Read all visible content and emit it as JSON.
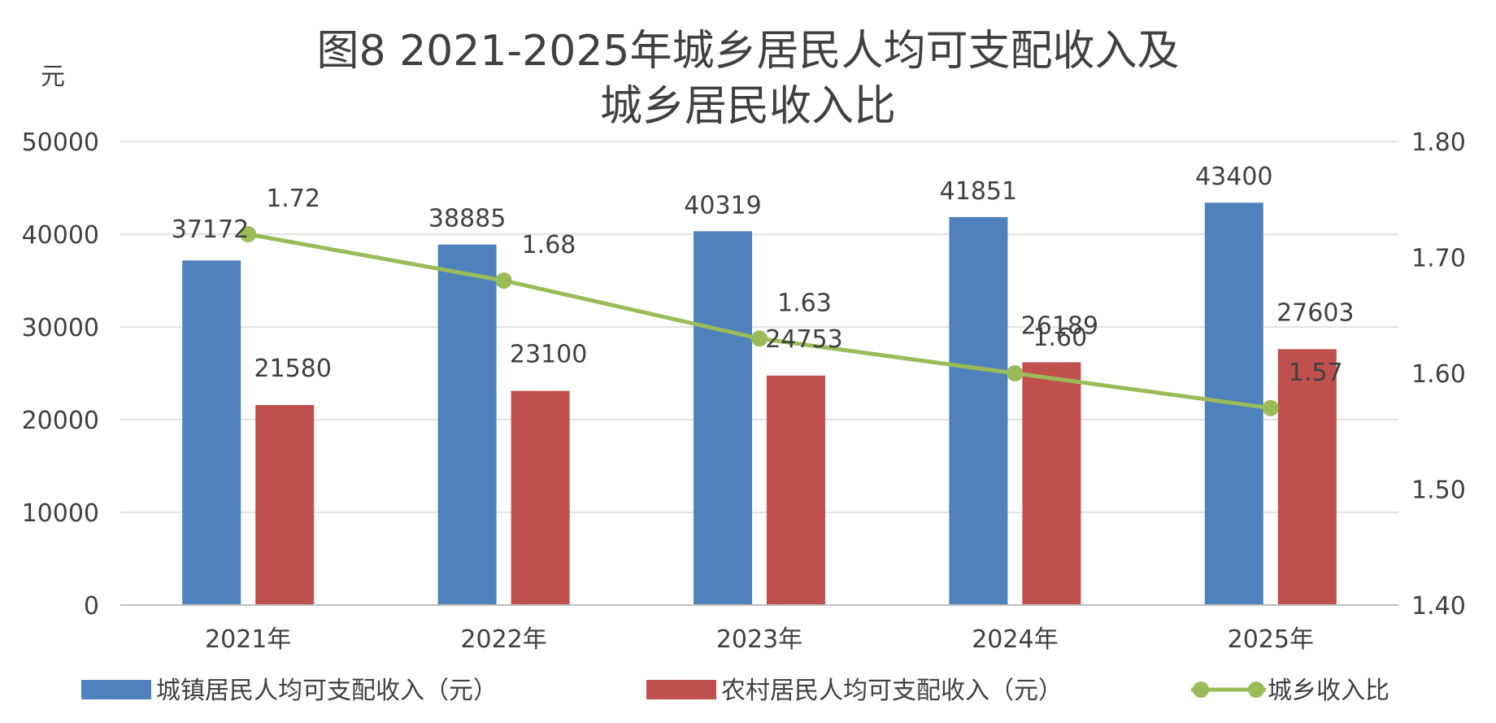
{
  "chart_data": {
    "type": "bar",
    "title_lines": [
      "图8  2021-2025年城乡居民人均可支配收入及",
      "城乡居民收入比"
    ],
    "y_unit": "元",
    "categories": [
      "2021年",
      "2022年",
      "2023年",
      "2024年",
      "2025年"
    ],
    "ylim": [
      0,
      50000
    ],
    "yticks": [
      "0",
      "10000",
      "20000",
      "30000",
      "40000",
      "50000"
    ],
    "y2lim": [
      1.4,
      1.8
    ],
    "y2ticks": [
      "1.40",
      "1.50",
      "1.60",
      "1.70",
      "1.80"
    ],
    "grid": true,
    "legend_position": "bottom",
    "series": [
      {
        "name": "城镇居民人均可支配收入（元）",
        "type": "bar",
        "axis": "left",
        "color": "#4f81bd",
        "values": [
          37172,
          38885,
          40319,
          41851,
          43400
        ],
        "labels": [
          "37172",
          "38885",
          "40319",
          "41851",
          "43400"
        ]
      },
      {
        "name": "农村居民人均可支配收入（元）",
        "type": "bar",
        "axis": "left",
        "color": "#c0504d",
        "values": [
          21580,
          23100,
          24753,
          26189,
          27603
        ],
        "labels": [
          "21580",
          "23100",
          "24753",
          "26189",
          "27603"
        ]
      },
      {
        "name": "城乡收入比",
        "type": "line",
        "axis": "right",
        "color": "#9bbb59",
        "values": [
          1.72,
          1.68,
          1.63,
          1.6,
          1.57
        ],
        "labels": [
          "1.72",
          "1.68",
          "1.63",
          "1.60",
          "1.57"
        ]
      }
    ]
  }
}
